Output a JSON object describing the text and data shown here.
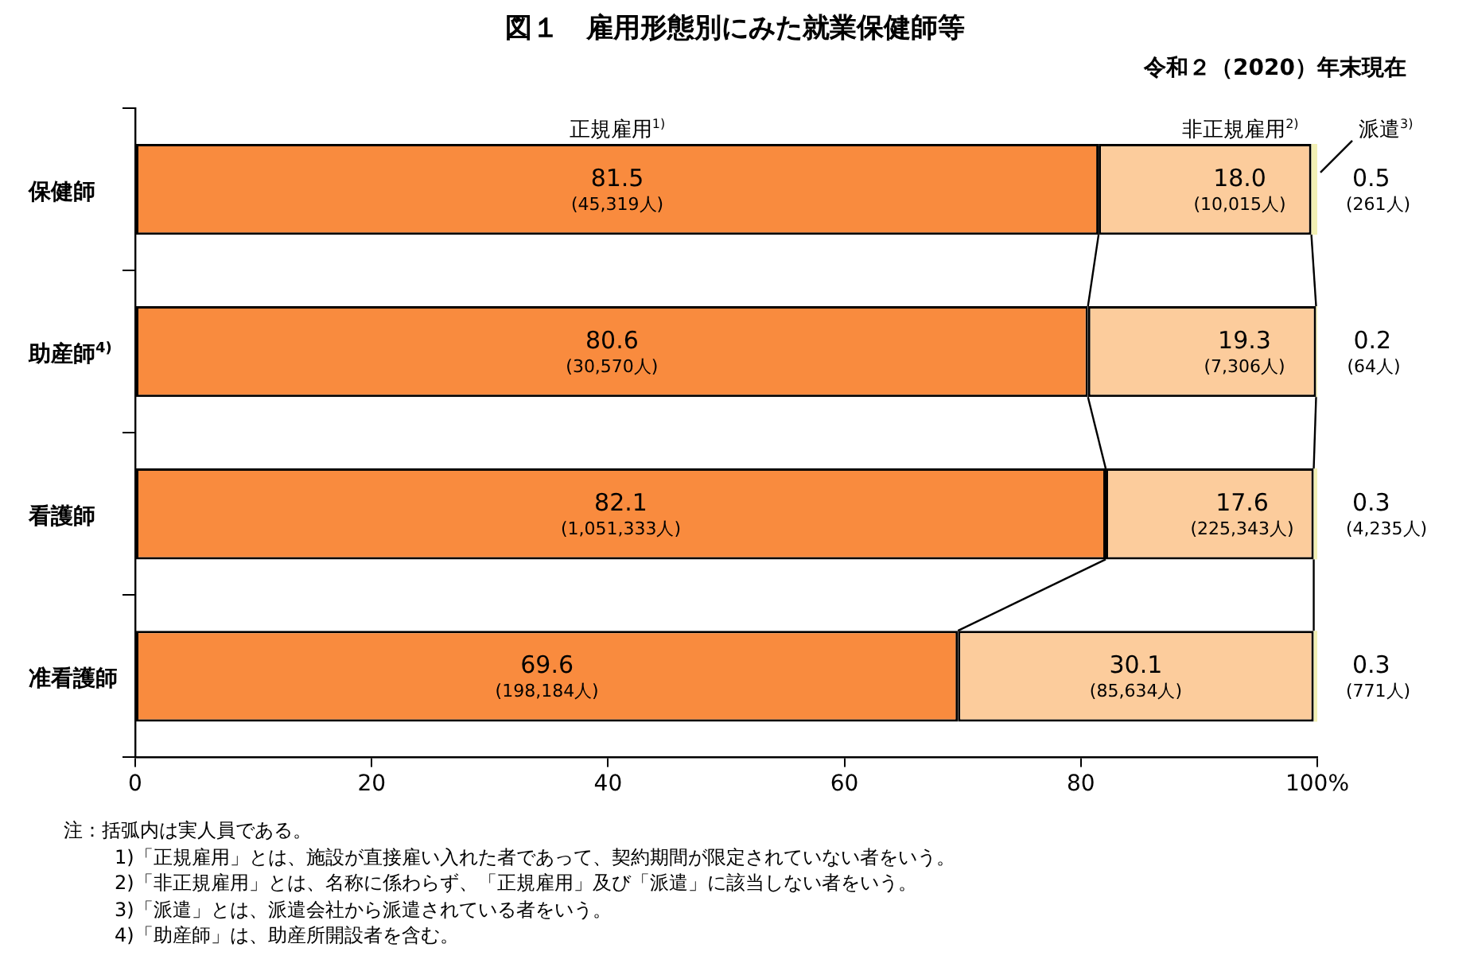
{
  "chart_data": {
    "type": "bar",
    "title": "図１　雇用形態別にみた就業保健師等",
    "subtitle": "令和２（2020）年末現在",
    "orientation": "horizontal",
    "stacked": true,
    "grid": false,
    "legend": false,
    "categories": [
      "保健師",
      "助産師$^{4)}$",
      "看護師",
      "准看護師"
    ],
    "series": [
      {
        "name": "正規雇用$^{1)}$",
        "color": "#f98b3e",
        "values": [
          81.5,
          80.6,
          82.1,
          69.6
        ],
        "value_labels": [
          "81.5\n(45,319人)",
          "80.6\n(30,570人)",
          "82.1\n(1,051,333人)",
          "69.6\n(198,184人)"
        ]
      },
      {
        "name": "非正規雇用$^{2)}$",
        "color": "#fccc9c",
        "values": [
          18.0,
          19.3,
          17.6,
          30.1
        ],
        "value_labels": [
          "18.0\n(10,015人)",
          "19.3\n(7,306人)",
          "17.6\n(225,343人)",
          "30.1\n(85,634人)"
        ]
      },
      {
        "name": "派遣$^{3)}$",
        "color": "#f2f0b4",
        "values": [
          0.5,
          0.2,
          0.3,
          0.3
        ],
        "value_labels": [
          "0.5\n(261人)",
          "0.2\n(64人)",
          "0.3\n(4,235人)",
          "0.3\n(771人)"
        ]
      }
    ],
    "xlim": [
      0,
      100
    ],
    "xticks": [
      0,
      20,
      40,
      60,
      80,
      {
        "value": 100,
        "label": "100%"
      }
    ],
    "annotations": [
      "注：括弧内は実人員である。",
      "1)「正規雇用」とは、施設が直接雇い入れた者であって、契約期間が限定されていない者をいう。",
      "2)「非正規雇用」とは、名称に係わらず、「正規雇用」及び「派遣」に該当しない者をいう。",
      "3)「派遣」とは、派遣会社から派遣されている者をいう。",
      "4)「助産師」は、助産所開設者を含む。"
    ]
  }
}
